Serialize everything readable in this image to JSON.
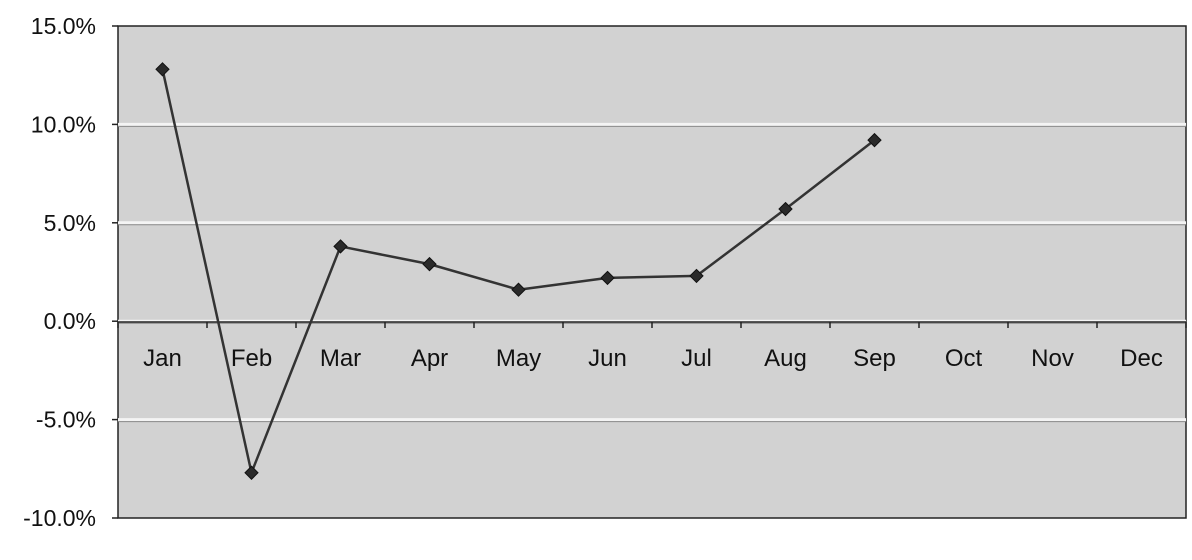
{
  "chart_data": {
    "type": "line",
    "categories": [
      "Jan",
      "Feb",
      "Mar",
      "Apr",
      "May",
      "Jun",
      "Jul",
      "Aug",
      "Sep",
      "Oct",
      "Nov",
      "Dec"
    ],
    "series": [
      {
        "values": [
          12.8,
          -7.7,
          3.8,
          2.9,
          1.6,
          2.2,
          2.3,
          5.7,
          9.2,
          null,
          null,
          null
        ]
      }
    ],
    "ylim": [
      -10,
      15
    ],
    "yticks": [
      15,
      10,
      5,
      0,
      -5,
      -10
    ],
    "ytick_labels": [
      "15.0%",
      "10.0%",
      "5.0%",
      "0.0%",
      "-5.0%",
      "-10.0%"
    ],
    "grid": true,
    "colors": {
      "plot_background": "#d2d2d2",
      "gridline": "#f4f4f4",
      "series_line": "#333333",
      "marker": "#2a2a2a",
      "axis": "#222222"
    }
  }
}
